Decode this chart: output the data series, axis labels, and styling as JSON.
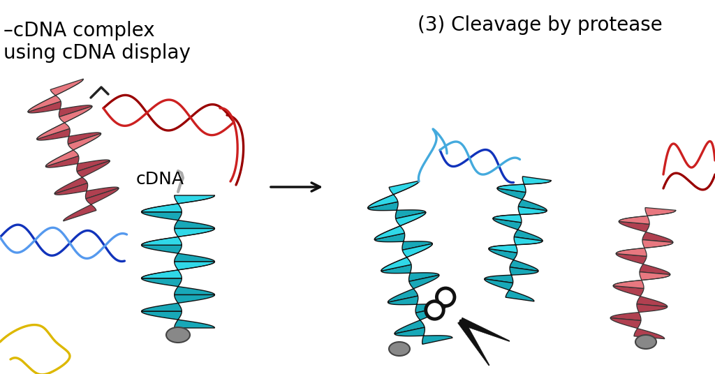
{
  "bg_color": "#ffffff",
  "text_left_line1": "–cDNA complex",
  "text_left_line2": "using cDNA display",
  "text_right": "(3) Cleavage by protease",
  "cdna_label": "cDNA",
  "helix_pink_color": "#e87880",
  "helix_pink_dark": "#b04050",
  "helix_pink_edge": "#333333",
  "helix_cyan_color": "#30d8e8",
  "helix_cyan_dark": "#18a8b8",
  "helix_cyan_edge": "#111111",
  "dna_red_color": "#cc2020",
  "dna_red2_color": "#990000",
  "dna_blue_color": "#1133bb",
  "dna_cyan_color": "#44aadd",
  "dna_yellow_color": "#ddb800",
  "gray_bead": "#888888",
  "gray_bead_dark": "#444444",
  "scissors_color": "#111111",
  "arrow_color": "#111111"
}
